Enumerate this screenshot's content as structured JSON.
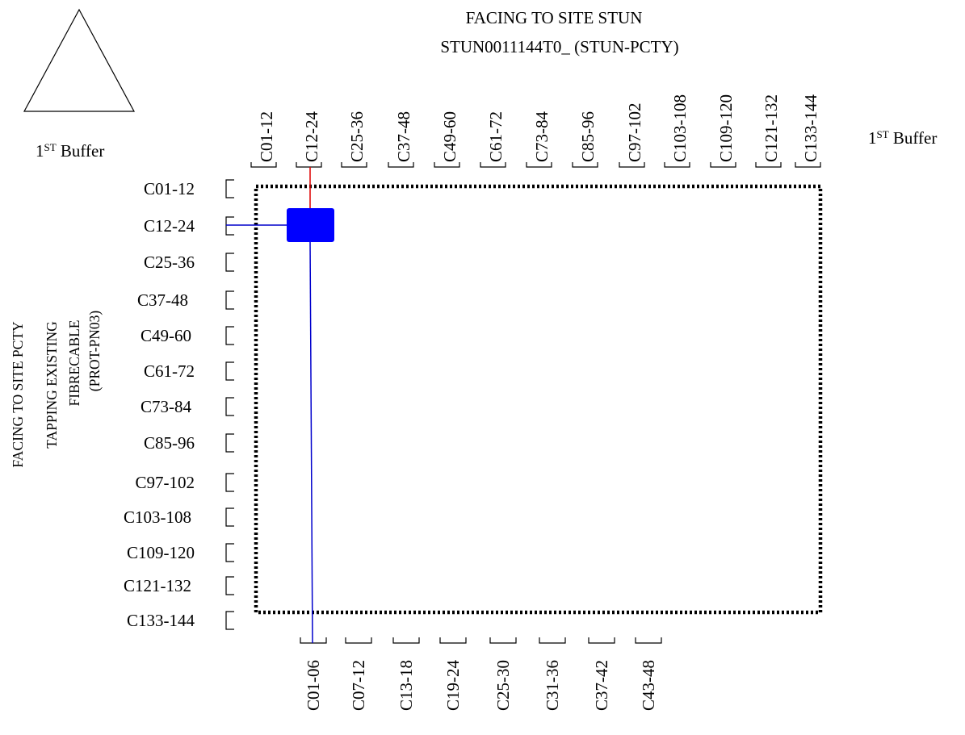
{
  "header": {
    "title_line1": "FACING TO SITE STUN",
    "title_line2": "STUN0011144T0_ (STUN-PCTY)"
  },
  "left_caption": {
    "line1": "FACING TO SITE PCTY",
    "line2": "TAPPING EXISTING",
    "line3": "FIBRECABLE",
    "line4": "(PROT-PN03)"
  },
  "buffer_left": {
    "text": "1",
    "sup": "ST",
    "suffix": " Buffer"
  },
  "buffer_right": {
    "text": "1",
    "sup": "ST",
    "suffix": " Buffer"
  },
  "top_labels": [
    "C01-12",
    "C12-24",
    "C25-36",
    "C37-48",
    "C49-60",
    "C61-72",
    "C73-84",
    "C85-96",
    "C97-102",
    "C103-108",
    "C109-120",
    "C121-132",
    "C133-144"
  ],
  "left_labels": [
    "C01-12",
    "C12-24",
    "C25-36",
    "C37-48",
    "C49-60",
    "C61-72",
    "C73-84",
    "C85-96",
    "C97-102",
    "C103-108",
    "C109-120",
    "C121-132",
    "C133-144"
  ],
  "bottom_labels": [
    "C01-06",
    "C07-12",
    "C13-18",
    "C19-24",
    "C25-30",
    "C31-36",
    "C37-42",
    "C43-48"
  ],
  "colors": {
    "splice_block": "#0000ff",
    "blue_line": "#0000cc",
    "red_line": "#dd0000",
    "frame": "#000000"
  }
}
